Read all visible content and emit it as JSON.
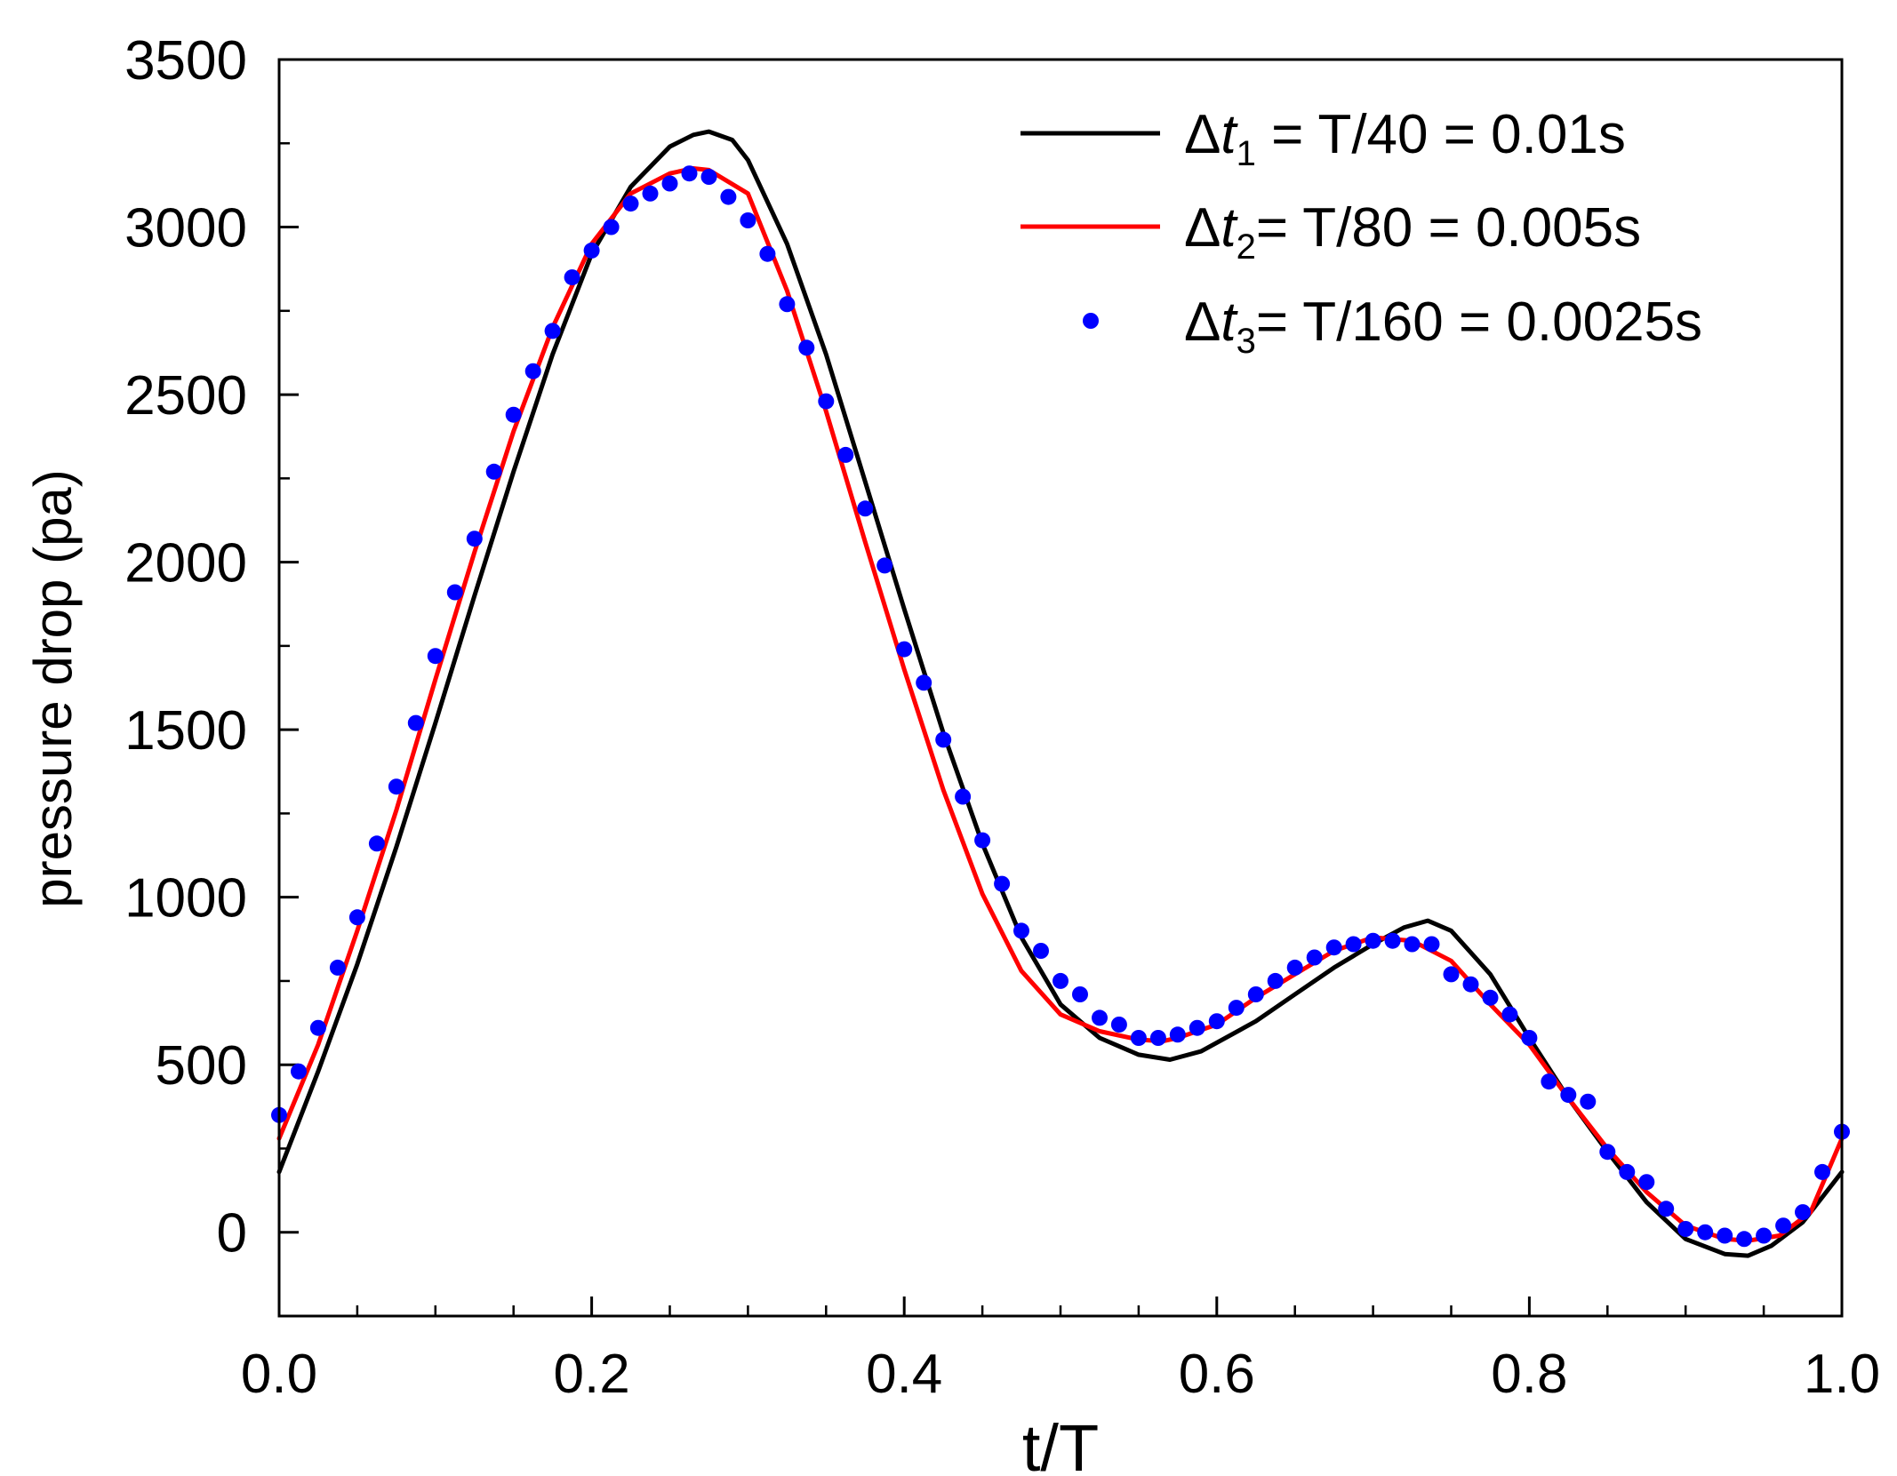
{
  "chart_data": {
    "type": "line",
    "title": "",
    "xlabel": "t/T",
    "ylabel": "pressure drop (pa)",
    "xlim": [
      0.0,
      1.0
    ],
    "ylim": [
      -250,
      3500
    ],
    "x_ticks": [
      "0.0",
      "0.2",
      "0.4",
      "0.6",
      "0.8",
      "1.0"
    ],
    "x_tick_values": [
      0.0,
      0.2,
      0.4,
      0.6,
      0.8,
      1.0
    ],
    "y_ticks": [
      "0",
      "500",
      "1000",
      "1500",
      "2000",
      "2500",
      "3000",
      "3500"
    ],
    "y_tick_values": [
      0,
      500,
      1000,
      1500,
      2000,
      2500,
      3000,
      3500
    ],
    "legend_position": "top-right",
    "series": [
      {
        "name": "dt1",
        "legend": {
          "delta": "Δ",
          "t": "t",
          "sub": "1",
          "rest": " = T/40 = 0.01s"
        },
        "style": "line",
        "color": "#000000",
        "x": [
          0.0,
          0.025,
          0.05,
          0.075,
          0.1,
          0.125,
          0.15,
          0.175,
          0.2,
          0.225,
          0.25,
          0.265,
          0.275,
          0.29,
          0.3,
          0.325,
          0.35,
          0.375,
          0.4,
          0.425,
          0.45,
          0.475,
          0.5,
          0.525,
          0.55,
          0.57,
          0.59,
          0.625,
          0.65,
          0.675,
          0.7,
          0.72,
          0.735,
          0.75,
          0.775,
          0.8,
          0.825,
          0.85,
          0.875,
          0.9,
          0.925,
          0.94,
          0.955,
          0.975,
          1.0
        ],
        "y": [
          180,
          480,
          800,
          1150,
          1520,
          1900,
          2270,
          2620,
          2920,
          3120,
          3240,
          3275,
          3285,
          3260,
          3200,
          2950,
          2620,
          2240,
          1860,
          1490,
          1160,
          880,
          680,
          580,
          530,
          515,
          540,
          630,
          710,
          790,
          860,
          910,
          930,
          900,
          770,
          580,
          400,
          240,
          90,
          -20,
          -65,
          -70,
          -40,
          30,
          180
        ]
      },
      {
        "name": "dt2",
        "legend": {
          "delta": "Δ",
          "t": "t",
          "sub": "2",
          "rest": "= T/80 = 0.005s"
        },
        "style": "line",
        "color": "#ff0000",
        "x": [
          0.0,
          0.025,
          0.05,
          0.075,
          0.1,
          0.125,
          0.15,
          0.175,
          0.2,
          0.225,
          0.25,
          0.265,
          0.275,
          0.3,
          0.325,
          0.35,
          0.375,
          0.4,
          0.425,
          0.45,
          0.475,
          0.5,
          0.525,
          0.55,
          0.565,
          0.575,
          0.6,
          0.625,
          0.65,
          0.675,
          0.7,
          0.725,
          0.75,
          0.775,
          0.8,
          0.825,
          0.85,
          0.875,
          0.9,
          0.925,
          0.94,
          0.96,
          0.98,
          1.0
        ],
        "y": [
          280,
          560,
          900,
          1260,
          1650,
          2030,
          2390,
          2700,
          2950,
          3100,
          3160,
          3175,
          3170,
          3100,
          2810,
          2450,
          2060,
          1680,
          1320,
          1010,
          780,
          650,
          600,
          575,
          570,
          580,
          620,
          700,
          770,
          840,
          880,
          870,
          810,
          680,
          560,
          400,
          250,
          120,
          20,
          -20,
          -25,
          -10,
          60,
          280
        ]
      },
      {
        "name": "dt3",
        "legend": {
          "delta": "Δ",
          "t": "t",
          "sub": "3",
          "rest": "= T/160 = 0.0025s"
        },
        "style": "markers",
        "color": "#0000ff",
        "x": [
          0.0,
          0.0125,
          0.025,
          0.0375,
          0.05,
          0.0625,
          0.075,
          0.0875,
          0.1,
          0.1125,
          0.125,
          0.1375,
          0.15,
          0.1625,
          0.175,
          0.1875,
          0.2,
          0.2125,
          0.225,
          0.2375,
          0.25,
          0.2625,
          0.275,
          0.2875,
          0.3,
          0.3125,
          0.325,
          0.3375,
          0.35,
          0.3625,
          0.375,
          0.3875,
          0.4,
          0.4125,
          0.425,
          0.4375,
          0.45,
          0.4625,
          0.475,
          0.4875,
          0.5,
          0.5125,
          0.525,
          0.5375,
          0.55,
          0.5625,
          0.575,
          0.5875,
          0.6,
          0.6125,
          0.625,
          0.6375,
          0.65,
          0.6625,
          0.675,
          0.6875,
          0.7,
          0.7125,
          0.725,
          0.7375,
          0.75,
          0.7625,
          0.775,
          0.7875,
          0.8,
          0.8125,
          0.825,
          0.8375,
          0.85,
          0.8625,
          0.875,
          0.8875,
          0.9,
          0.9125,
          0.925,
          0.9375,
          0.95,
          0.9625,
          0.975,
          0.9875,
          1.0
        ],
        "y": [
          350,
          480,
          610,
          790,
          940,
          1160,
          1330,
          1520,
          1720,
          1910,
          2070,
          2270,
          2440,
          2570,
          2690,
          2850,
          2930,
          3000,
          3070,
          3100,
          3130,
          3160,
          3150,
          3090,
          3020,
          2920,
          2770,
          2640,
          2480,
          2320,
          2160,
          1990,
          1740,
          1640,
          1470,
          1300,
          1170,
          1040,
          900,
          840,
          750,
          710,
          640,
          620,
          580,
          580,
          590,
          610,
          630,
          670,
          710,
          750,
          790,
          820,
          850,
          860,
          870,
          870,
          860,
          860,
          770,
          740,
          700,
          650,
          580,
          450,
          410,
          390,
          240,
          180,
          150,
          70,
          10,
          0,
          -10,
          -20,
          -10,
          20,
          60,
          180,
          300
        ]
      }
    ]
  }
}
